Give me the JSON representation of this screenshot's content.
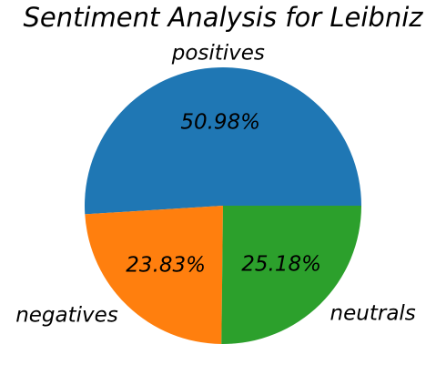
{
  "chart_data": {
    "type": "pie",
    "title": "Sentiment Analysis for Leibniz",
    "slices": [
      {
        "label": "positives",
        "value": 50.98,
        "display": "50.98%",
        "color": "#1f77b4"
      },
      {
        "label": "negatives",
        "value": 23.83,
        "display": "23.83%",
        "color": "#ff7f0e"
      },
      {
        "label": "neutrals",
        "value": 25.18,
        "display": "25.18%",
        "color": "#2ca02c"
      }
    ],
    "start_angle_deg": 0,
    "direction": "counterclockwise",
    "legend": "none"
  }
}
